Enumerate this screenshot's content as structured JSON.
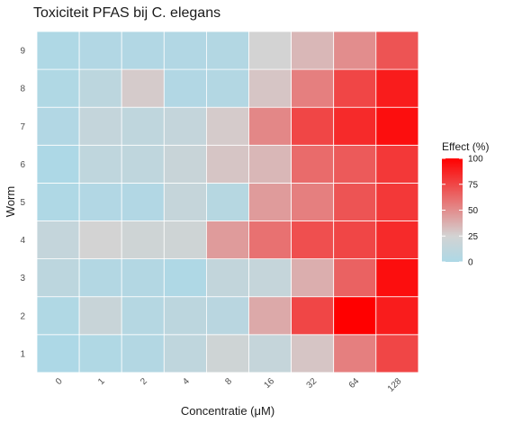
{
  "chart_data": {
    "type": "heatmap",
    "title": "Toxiciteit PFAS bij C. elegans",
    "xlabel": "Concentratie (μM)",
    "ylabel": "Worm",
    "x_categories": [
      "0",
      "1",
      "2",
      "4",
      "8",
      "16",
      "32",
      "64",
      "128"
    ],
    "y_categories": [
      "1",
      "2",
      "3",
      "4",
      "5",
      "6",
      "7",
      "8",
      "9"
    ],
    "values": [
      [
        0,
        2,
        4,
        12,
        22,
        16,
        30,
        55,
        75
      ],
      [
        2,
        18,
        5,
        10,
        8,
        40,
        75,
        100,
        90
      ],
      [
        10,
        4,
        4,
        1,
        14,
        16,
        38,
        65,
        95
      ],
      [
        15,
        25,
        22,
        22,
        45,
        60,
        72,
        75,
        85
      ],
      [
        1,
        3,
        3,
        16,
        6,
        45,
        55,
        70,
        80
      ],
      [
        0,
        12,
        12,
        18,
        30,
        35,
        62,
        68,
        80
      ],
      [
        3,
        15,
        12,
        15,
        28,
        52,
        75,
        85,
        95
      ],
      [
        2,
        10,
        28,
        3,
        4,
        30,
        55,
        75,
        90
      ],
      [
        1,
        3,
        3,
        3,
        4,
        25,
        35,
        50,
        70
      ]
    ],
    "legend": {
      "title": "Effect (%)",
      "ticks": [
        "0",
        "25",
        "50",
        "75",
        "100"
      ],
      "range": [
        0,
        100
      ],
      "low_color": "#add8e6",
      "mid_color": "#d3d3d3",
      "high_color": "#ff0000",
      "position": "right"
    },
    "grid_color": "#ffffff"
  }
}
